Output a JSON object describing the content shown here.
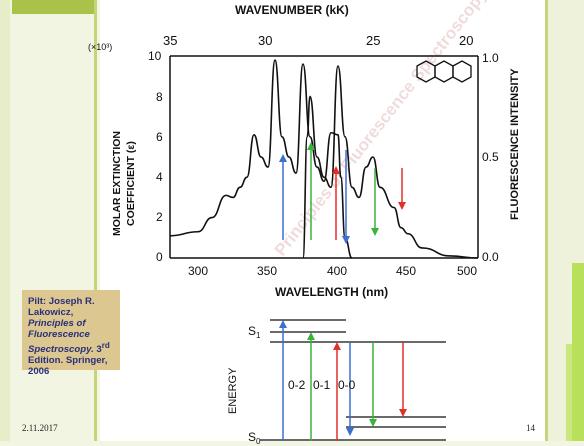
{
  "slide": {
    "date": "2.11.2017",
    "page_number": "14",
    "citation": {
      "prefix": "Pilt: Joseph R. Lakowicz, ",
      "title": "Principles of Fluorescence Spectroscopy.",
      "edition_num": " 3",
      "edition_sup": "rd",
      "suffix": " Edition. Springer, 2006"
    }
  },
  "figure": {
    "top_axis_label": "WAVENUMBER (kK)",
    "top_ticks": [
      "35",
      "30",
      "25",
      "20"
    ],
    "left_axis_label_1": "MOLAR EXTINCTION",
    "left_axis_label_2": "COEFFICIENT (ε)",
    "left_multiplier": "(×10³)",
    "left_ticks": [
      "10",
      "8",
      "6",
      "4",
      "2",
      "0"
    ],
    "right_axis_label": "FLUORESCENCE INTENSITY",
    "right_ticks": [
      "1.0",
      "0.5",
      "0.0"
    ],
    "bottom_axis_label": "WAVELENGTH (nm)",
    "bottom_ticks": [
      "300",
      "350",
      "400",
      "450",
      "500"
    ],
    "watermark": "Principles of Fluorescence Spectroscopy",
    "energy_label": "ENERGY",
    "s1_label": "S",
    "s1_sub": "1",
    "s0_label": "S",
    "s0_sub": "0",
    "transition_labels": [
      "0-2",
      "0-1",
      "0-0"
    ],
    "colors": {
      "blue": "#3b6fd0",
      "green": "#38b43a",
      "red": "#e0302c"
    }
  },
  "chart_data": {
    "type": "line",
    "x_unit": "nm",
    "xlim": [
      280,
      500
    ],
    "ylim_left": [
      0,
      10
    ],
    "ylim_right": [
      0,
      1.0
    ],
    "series": [
      {
        "axis": "left",
        "x": [
          280,
          300,
          310,
          320,
          325,
          330,
          335,
          340,
          345,
          350,
          355,
          360,
          365,
          370,
          375,
          380,
          385,
          390,
          395,
          400,
          402,
          405,
          410
        ],
        "values": [
          1.1,
          1.3,
          2.0,
          3.1,
          3.0,
          3.5,
          4.0,
          6.1,
          5.0,
          4.5,
          9.8,
          6.0,
          5.0,
          4.2,
          9.6,
          6.0,
          4.5,
          3.8,
          6.2,
          6.1,
          4.0,
          1.0,
          0.0
        ]
      },
      {
        "axis": "right",
        "x": [
          375,
          378,
          380,
          385,
          390,
          395,
          400,
          405,
          410,
          415,
          420,
          425,
          430,
          440,
          445,
          450,
          460,
          480,
          500
        ],
        "values": [
          0.0,
          0.6,
          0.8,
          0.5,
          0.4,
          0.35,
          0.95,
          0.6,
          0.35,
          0.3,
          0.45,
          0.5,
          0.35,
          0.25,
          0.15,
          0.12,
          0.05,
          0.01,
          0.0
        ]
      }
    ]
  }
}
